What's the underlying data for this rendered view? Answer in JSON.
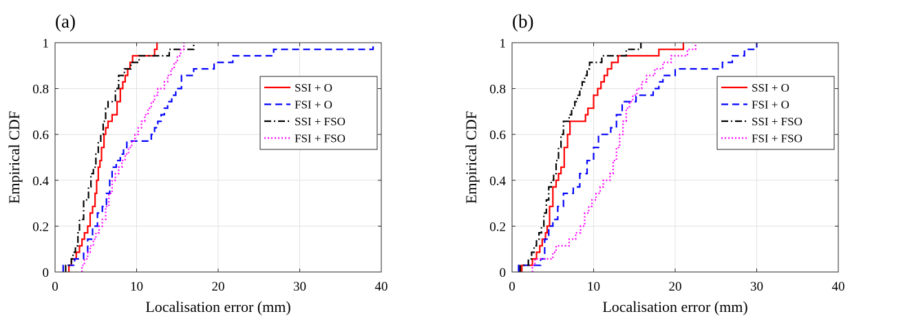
{
  "figure": {
    "colors": {
      "ssi_o": "#ff0000",
      "fsi_o": "#0000ff",
      "ssi_fso": "#000000",
      "fsi_fso": "#ff00ff"
    }
  },
  "chart_data": [
    {
      "type": "line",
      "panel_label": "(a)",
      "title": "",
      "xlabel": "Localisation error (mm)",
      "ylabel": "Empirical CDF",
      "xlim": [
        0,
        40
      ],
      "ylim": [
        0,
        1
      ],
      "xticks": [
        0,
        10,
        20,
        30,
        40
      ],
      "yticks": [
        0,
        0.2,
        0.4,
        0.6,
        0.8,
        1
      ],
      "xtick_labels": [
        "0",
        "10",
        "20",
        "30",
        "40"
      ],
      "ytick_labels": [
        "0",
        "0.2",
        "0.4",
        "0.6",
        "0.8",
        "1"
      ],
      "grid": true,
      "legend_position": "top-right",
      "series": [
        {
          "name": "SSI + O",
          "key": "ssi_o",
          "style": "solid",
          "x": [
            1.7,
            2.0,
            2.6,
            3.0,
            3.3,
            3.6,
            4.0,
            4.3,
            4.6,
            4.9,
            5.1,
            5.3,
            5.5,
            5.7,
            6.0,
            6.2,
            6.5,
            7.0,
            7.6,
            8.0,
            8.3,
            8.6,
            8.9,
            9.2,
            9.5,
            9.8,
            12.2,
            12.5
          ],
          "y": [
            0.029,
            0.057,
            0.086,
            0.114,
            0.143,
            0.171,
            0.2,
            0.257,
            0.286,
            0.343,
            0.4,
            0.457,
            0.486,
            0.543,
            0.6,
            0.629,
            0.657,
            0.686,
            0.743,
            0.8,
            0.829,
            0.857,
            0.886,
            0.914,
            0.943,
            0.943,
            0.971,
            1.0
          ]
        },
        {
          "name": "FSI + O",
          "key": "fsi_o",
          "style": "dashed",
          "x": [
            1.0,
            2.4,
            3.5,
            4.0,
            4.6,
            5.2,
            5.8,
            6.3,
            6.7,
            7.0,
            7.5,
            8.0,
            8.4,
            8.8,
            9.3,
            9.7,
            10.3,
            11.8,
            12.2,
            12.6,
            13.0,
            13.4,
            13.8,
            14.3,
            14.8,
            15.5,
            16.0,
            17.0,
            18.0,
            19.5,
            21.8,
            26.8,
            39.0
          ],
          "y": [
            0.029,
            0.057,
            0.086,
            0.143,
            0.2,
            0.257,
            0.286,
            0.343,
            0.4,
            0.457,
            0.486,
            0.514,
            0.543,
            0.571,
            0.571,
            0.571,
            0.571,
            0.6,
            0.629,
            0.657,
            0.686,
            0.714,
            0.743,
            0.771,
            0.8,
            0.857,
            0.857,
            0.886,
            0.886,
            0.914,
            0.943,
            0.971,
            1.0
          ]
        },
        {
          "name": "SSI + FSO",
          "key": "ssi_fso",
          "style": "dashdot",
          "x": [
            1.3,
            2.0,
            2.2,
            2.5,
            2.8,
            3.0,
            3.5,
            4.1,
            4.4,
            4.7,
            5.0,
            5.3,
            5.6,
            5.9,
            6.2,
            6.5,
            6.8,
            7.4,
            7.8,
            8.1,
            8.5,
            8.9,
            9.3,
            9.7,
            10.3,
            12.5,
            14.0,
            16.6,
            17.0
          ],
          "y": [
            0.029,
            0.057,
            0.086,
            0.114,
            0.171,
            0.229,
            0.314,
            0.371,
            0.429,
            0.457,
            0.514,
            0.571,
            0.6,
            0.657,
            0.714,
            0.743,
            0.743,
            0.8,
            0.857,
            0.857,
            0.886,
            0.886,
            0.914,
            0.914,
            0.943,
            0.943,
            0.971,
            0.971,
            1.0
          ]
        },
        {
          "name": "FSI + FSO",
          "key": "fsi_fso",
          "style": "dotted",
          "x": [
            3.3,
            3.6,
            4.0,
            4.3,
            4.7,
            5.0,
            5.4,
            5.8,
            6.2,
            6.6,
            7.0,
            7.4,
            7.8,
            8.2,
            8.6,
            9.0,
            9.4,
            9.8,
            10.2,
            10.6,
            11.0,
            11.4,
            11.8,
            12.2,
            12.6,
            13.0,
            13.4,
            13.8,
            14.2,
            14.6,
            15.0,
            15.4,
            15.8
          ],
          "y": [
            0.029,
            0.057,
            0.086,
            0.114,
            0.143,
            0.171,
            0.2,
            0.229,
            0.286,
            0.343,
            0.4,
            0.429,
            0.457,
            0.486,
            0.514,
            0.543,
            0.571,
            0.6,
            0.629,
            0.657,
            0.686,
            0.714,
            0.743,
            0.771,
            0.8,
            0.8,
            0.829,
            0.857,
            0.886,
            0.914,
            0.943,
            0.971,
            1.0
          ]
        }
      ]
    },
    {
      "type": "line",
      "panel_label": "(b)",
      "title": "",
      "xlabel": "Localisation error (mm)",
      "ylabel": "Empirical CDF",
      "xlim": [
        0,
        40
      ],
      "ylim": [
        0,
        1
      ],
      "xticks": [
        0,
        10,
        20,
        30,
        40
      ],
      "yticks": [
        0,
        0.2,
        0.4,
        0.6,
        0.8,
        1
      ],
      "xtick_labels": [
        "0",
        "10",
        "20",
        "30",
        "40"
      ],
      "ytick_labels": [
        "0",
        "0.2",
        "0.4",
        "0.6",
        "0.8",
        "1"
      ],
      "grid": true,
      "legend_position": "top-right",
      "series": [
        {
          "name": "SSI + O",
          "key": "ssi_o",
          "style": "solid",
          "x": [
            1.2,
            2.5,
            3.0,
            3.4,
            3.7,
            4.1,
            4.3,
            4.6,
            5.0,
            5.4,
            5.7,
            6.0,
            6.4,
            6.8,
            7.1,
            9.0,
            9.3,
            9.7,
            10.0,
            10.5,
            10.9,
            11.3,
            11.7,
            12.2,
            12.6,
            13.0,
            17.0,
            18.0,
            20.8,
            21.0
          ],
          "y": [
            0.029,
            0.057,
            0.086,
            0.114,
            0.143,
            0.171,
            0.2,
            0.286,
            0.371,
            0.4,
            0.429,
            0.457,
            0.543,
            0.6,
            0.657,
            0.686,
            0.714,
            0.714,
            0.771,
            0.8,
            0.829,
            0.857,
            0.886,
            0.914,
            0.914,
            0.943,
            0.943,
            0.971,
            0.971,
            1.0
          ]
        },
        {
          "name": "FSI + O",
          "key": "fsi_o",
          "style": "dashed",
          "x": [
            0.8,
            3.5,
            4.0,
            4.5,
            5.0,
            5.6,
            6.3,
            7.5,
            8.3,
            9.2,
            10.0,
            10.6,
            11.5,
            12.1,
            12.8,
            13.5,
            14.3,
            15.2,
            16.3,
            17.3,
            18.0,
            18.5,
            20.0,
            20.6,
            25.8,
            27.0,
            28.5,
            30.0
          ],
          "y": [
            0.029,
            0.057,
            0.143,
            0.2,
            0.229,
            0.286,
            0.343,
            0.371,
            0.429,
            0.486,
            0.543,
            0.6,
            0.6,
            0.629,
            0.686,
            0.743,
            0.743,
            0.771,
            0.771,
            0.8,
            0.829,
            0.857,
            0.886,
            0.886,
            0.914,
            0.943,
            0.971,
            1.0
          ]
        },
        {
          "name": "SSI + FSO",
          "key": "ssi_fso",
          "style": "dashdot",
          "x": [
            1.0,
            2.0,
            2.4,
            2.7,
            3.0,
            3.3,
            3.6,
            3.9,
            4.2,
            4.5,
            4.8,
            5.1,
            5.4,
            5.7,
            6.0,
            6.3,
            6.6,
            7.0,
            7.3,
            7.7,
            8.0,
            8.3,
            8.6,
            8.9,
            9.2,
            9.5,
            9.8,
            10.2,
            11.0,
            12.0,
            14.0,
            15.8
          ],
          "y": [
            0.029,
            0.057,
            0.086,
            0.114,
            0.143,
            0.171,
            0.2,
            0.257,
            0.314,
            0.371,
            0.4,
            0.429,
            0.486,
            0.543,
            0.6,
            0.657,
            0.657,
            0.686,
            0.714,
            0.743,
            0.771,
            0.8,
            0.829,
            0.857,
            0.886,
            0.914,
            0.914,
            0.914,
            0.943,
            0.943,
            0.971,
            1.0
          ]
        },
        {
          "name": "FSI + FSO",
          "key": "fsi_fso",
          "style": "dotted",
          "x": [
            2.5,
            2.8,
            3.2,
            5.0,
            5.4,
            6.6,
            7.0,
            7.8,
            8.4,
            8.9,
            9.4,
            9.8,
            10.3,
            10.8,
            11.2,
            11.6,
            12.0,
            12.4,
            12.8,
            13.2,
            13.6,
            14.0,
            14.4,
            14.8,
            15.3,
            15.9,
            16.5,
            17.5,
            18.5,
            19.5,
            21.5,
            22.5
          ],
          "y": [
            0.029,
            0.057,
            0.057,
            0.086,
            0.114,
            0.114,
            0.143,
            0.171,
            0.2,
            0.257,
            0.286,
            0.314,
            0.343,
            0.371,
            0.4,
            0.4,
            0.429,
            0.486,
            0.543,
            0.6,
            0.657,
            0.714,
            0.743,
            0.771,
            0.8,
            0.829,
            0.857,
            0.886,
            0.914,
            0.943,
            0.971,
            1.0
          ]
        }
      ]
    }
  ]
}
